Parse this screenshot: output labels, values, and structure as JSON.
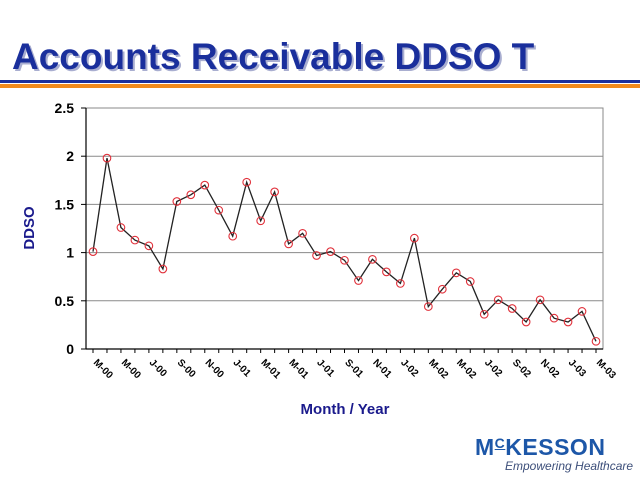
{
  "slide": {
    "title": "Accounts Receivable DDSO T"
  },
  "logo": {
    "name": "McKESSON",
    "tagline": "Empowering Healthcare",
    "color": "#1d57a8"
  },
  "colors": {
    "title": "#1a2f9c",
    "rule_blue": "#1a2f9c",
    "rule_orange": "#f08a1c",
    "line": "#222222",
    "marker": "#e0303a",
    "axis_title": "#1a1a8c"
  },
  "chart_data": {
    "type": "line",
    "title": "",
    "xlabel": "Month / Year",
    "ylabel": "DDSO",
    "ylim": [
      0,
      2.5
    ],
    "yticks": [
      "0",
      "0.5",
      "1",
      "1.5",
      "2",
      "2.5"
    ],
    "grid": true,
    "legend": "none",
    "x_tick_labels": [
      "M-00",
      "M-00",
      "J-00",
      "S-00",
      "N-00",
      "J-01",
      "M-01",
      "M-01",
      "J-01",
      "S-01",
      "N-01",
      "J-02",
      "M-02",
      "M-02",
      "J-02",
      "S-02",
      "N-02",
      "J-03",
      "M-03"
    ],
    "series": [
      {
        "values": [
          1.01,
          1.98,
          1.26,
          1.13,
          1.07,
          0.83,
          1.53,
          1.6,
          1.7,
          1.44,
          1.17,
          1.73,
          1.33,
          1.63,
          1.09,
          1.2,
          0.97,
          1.01,
          0.92,
          0.71,
          0.93,
          0.8,
          0.68,
          1.15,
          0.44,
          0.62,
          0.79,
          0.7,
          0.36,
          0.51,
          0.42,
          0.28,
          0.51,
          0.32,
          0.28,
          0.39,
          0.08
        ]
      }
    ]
  }
}
